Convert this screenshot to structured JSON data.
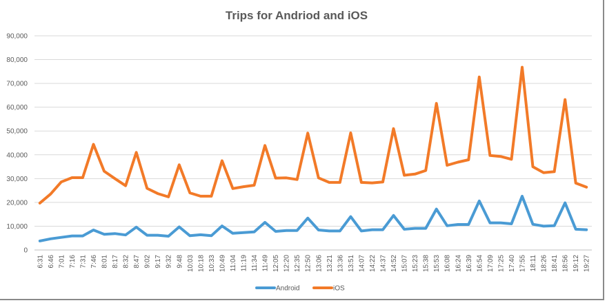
{
  "chart_data": {
    "type": "line",
    "title": "Trips for Andriod and iOS",
    "xlabel": "",
    "ylabel": "",
    "ylim": [
      0,
      90000
    ],
    "y_ticks": [
      "0",
      "10,000",
      "20,000",
      "30,000",
      "40,000",
      "50,000",
      "60,000",
      "70,000",
      "80,000",
      "90,000"
    ],
    "grid": "horizontal",
    "legend": "bottom",
    "colors": {
      "Android": "#4a9bd4",
      "iOS": "#f27a28",
      "grid": "#d9d9d9",
      "text": "#595959"
    },
    "x": [
      "6:31",
      "6:46",
      "7:01",
      "7:16",
      "7:31",
      "7:46",
      "8:01",
      "8:17",
      "8:32",
      "8:47",
      "9:02",
      "9:17",
      "9:32",
      "9:48",
      "10:03",
      "10:18",
      "10:33",
      "10:49",
      "11:04",
      "11:19",
      "11:34",
      "11:49",
      "12:05",
      "12:20",
      "12:35",
      "12:50",
      "13:06",
      "13:21",
      "13:36",
      "13:51",
      "14:07",
      "14:22",
      "14:37",
      "14:52",
      "15:07",
      "15:23",
      "15:38",
      "15:53",
      "16:08",
      "16:24",
      "16:39",
      "16:54",
      "17:09",
      "17:25",
      "17:40",
      "17:55",
      "18:11",
      "18:26",
      "18:41",
      "18:56",
      "19:12",
      "19:27"
    ],
    "series": [
      {
        "name": "Android",
        "values": [
          3800,
          4700,
          5300,
          5900,
          5900,
          8400,
          6600,
          6900,
          6300,
          9600,
          6200,
          6200,
          5800,
          9700,
          6000,
          6400,
          6000,
          10100,
          7000,
          7300,
          7600,
          11600,
          7800,
          8200,
          8200,
          13400,
          8400,
          8000,
          8000,
          14000,
          8000,
          8500,
          8500,
          14500,
          8700,
          9100,
          9100,
          17200,
          10200,
          10700,
          10700,
          20600,
          11400,
          11400,
          11000,
          22600,
          10800,
          10000,
          10200,
          19800,
          8700,
          8500
        ]
      },
      {
        "name": "iOS",
        "values": [
          19700,
          23500,
          28600,
          30400,
          30400,
          44400,
          33100,
          30000,
          27000,
          41000,
          25900,
          23700,
          22300,
          35800,
          24000,
          22600,
          22600,
          37500,
          25800,
          26600,
          27200,
          43900,
          30200,
          30300,
          29600,
          49100,
          30300,
          28400,
          28400,
          49200,
          28400,
          28200,
          28600,
          51000,
          31400,
          31900,
          33400,
          61600,
          35600,
          36900,
          37900,
          72700,
          39700,
          39300,
          38100,
          76800,
          35000,
          32500,
          32900,
          63200,
          28100,
          26400
        ]
      }
    ]
  }
}
